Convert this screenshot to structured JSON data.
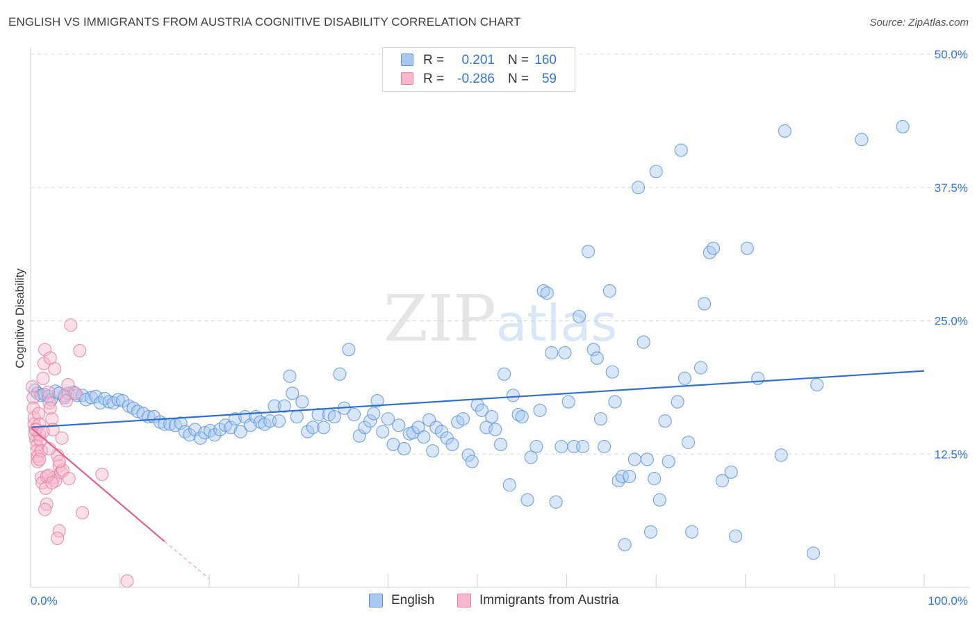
{
  "header": {
    "title": "ENGLISH VS IMMIGRANTS FROM AUSTRIA COGNITIVE DISABILITY CORRELATION CHART",
    "source": "Source: ZipAtlas.com"
  },
  "watermark": {
    "part1": "ZIP",
    "part2": "atlas"
  },
  "legend_top": {
    "rows": [
      {
        "r_label": "R =",
        "r_value": "0.201",
        "n_label": "N =",
        "n_value": "160"
      },
      {
        "r_label": "R =",
        "r_value": "-0.286",
        "n_label": "N =",
        "n_value": "59"
      }
    ]
  },
  "legend_bottom": [
    {
      "label": "English"
    },
    {
      "label": "Immigrants from Austria"
    }
  ],
  "colors": {
    "english_fill": "#a9c8f0",
    "english_stroke": "#5b93dc",
    "english_line": "#2e6fd0",
    "austria_fill": "#f6b9cc",
    "austria_stroke": "#e77fa3",
    "austria_line": "#e0608e",
    "grid": "#d9d9d9",
    "axis_text_blue": "#3575d0"
  },
  "chart_data": {
    "type": "scatter",
    "title": "ENGLISH VS IMMIGRANTS FROM AUSTRIA COGNITIVE DISABILITY CORRELATION CHART",
    "xlabel": "",
    "ylabel": "Cognitive Disability",
    "xlim": [
      0,
      100
    ],
    "ylim": [
      0,
      50
    ],
    "x_tick_labels": [
      "0.0%",
      "100.0%"
    ],
    "y_ticks": [
      12.5,
      25.0,
      37.5,
      50.0
    ],
    "y_tick_labels": [
      "12.5%",
      "25.0%",
      "37.5%",
      "50.0%"
    ],
    "series": [
      {
        "name": "English",
        "r": 0.201,
        "n": 160,
        "trend": {
          "x": [
            0,
            100
          ],
          "y": [
            15.0,
            20.3
          ]
        },
        "points": [
          [
            0.5,
            18.5
          ],
          [
            0.8,
            18.2
          ],
          [
            1.2,
            18.0
          ],
          [
            1.5,
            18.1
          ],
          [
            2.0,
            17.9
          ],
          [
            2.3,
            17.6
          ],
          [
            2.8,
            18.4
          ],
          [
            3.2,
            18.2
          ],
          [
            3.8,
            17.8
          ],
          [
            4.2,
            18.2
          ],
          [
            4.8,
            18.3
          ],
          [
            5.2,
            18.0
          ],
          [
            5.8,
            18.0
          ],
          [
            6.2,
            17.6
          ],
          [
            6.8,
            17.8
          ],
          [
            7.3,
            17.9
          ],
          [
            7.8,
            17.3
          ],
          [
            8.3,
            17.7
          ],
          [
            8.8,
            17.4
          ],
          [
            9.3,
            17.3
          ],
          [
            9.8,
            17.6
          ],
          [
            10.3,
            17.5
          ],
          [
            11.0,
            17.0
          ],
          [
            11.5,
            16.8
          ],
          [
            12.0,
            16.5
          ],
          [
            12.6,
            16.3
          ],
          [
            13.2,
            16.0
          ],
          [
            13.8,
            16.0
          ],
          [
            14.5,
            15.5
          ],
          [
            15.0,
            15.3
          ],
          [
            15.6,
            15.3
          ],
          [
            16.2,
            15.2
          ],
          [
            16.8,
            15.4
          ],
          [
            17.3,
            14.6
          ],
          [
            17.8,
            14.3
          ],
          [
            18.4,
            14.8
          ],
          [
            19.0,
            14.0
          ],
          [
            19.5,
            14.5
          ],
          [
            20.1,
            14.7
          ],
          [
            20.6,
            14.3
          ],
          [
            21.2,
            14.8
          ],
          [
            21.8,
            15.2
          ],
          [
            22.4,
            15.0
          ],
          [
            22.9,
            15.8
          ],
          [
            23.5,
            14.6
          ],
          [
            24.0,
            16.0
          ],
          [
            24.6,
            15.2
          ],
          [
            25.2,
            16.0
          ],
          [
            25.7,
            15.5
          ],
          [
            26.2,
            15.3
          ],
          [
            26.8,
            15.6
          ],
          [
            27.3,
            17.0
          ],
          [
            27.8,
            15.6
          ],
          [
            28.4,
            17.0
          ],
          [
            29.0,
            19.8
          ],
          [
            29.3,
            18.2
          ],
          [
            29.8,
            16.0
          ],
          [
            30.4,
            17.4
          ],
          [
            31.0,
            14.6
          ],
          [
            31.6,
            15.0
          ],
          [
            32.2,
            16.2
          ],
          [
            32.8,
            15.0
          ],
          [
            33.4,
            16.2
          ],
          [
            34.0,
            16.0
          ],
          [
            34.6,
            20.0
          ],
          [
            35.1,
            16.8
          ],
          [
            35.6,
            22.3
          ],
          [
            36.2,
            16.2
          ],
          [
            36.8,
            14.2
          ],
          [
            37.4,
            15.0
          ],
          [
            38.0,
            15.6
          ],
          [
            38.4,
            16.3
          ],
          [
            38.8,
            17.5
          ],
          [
            39.4,
            14.6
          ],
          [
            40.0,
            15.8
          ],
          [
            40.6,
            13.4
          ],
          [
            41.2,
            15.2
          ],
          [
            41.8,
            13.0
          ],
          [
            42.4,
            14.4
          ],
          [
            42.8,
            14.5
          ],
          [
            43.4,
            15.0
          ],
          [
            44.0,
            14.1
          ],
          [
            44.6,
            15.7
          ],
          [
            45.0,
            12.8
          ],
          [
            45.4,
            15.0
          ],
          [
            46.0,
            14.6
          ],
          [
            46.6,
            14.0
          ],
          [
            47.2,
            13.4
          ],
          [
            47.8,
            15.5
          ],
          [
            48.4,
            15.8
          ],
          [
            49.0,
            12.4
          ],
          [
            49.4,
            11.8
          ],
          [
            50.0,
            17.1
          ],
          [
            50.5,
            16.6
          ],
          [
            51.0,
            15.0
          ],
          [
            51.6,
            16.0
          ],
          [
            52.0,
            14.8
          ],
          [
            52.6,
            13.4
          ],
          [
            53.0,
            20.0
          ],
          [
            53.6,
            9.6
          ],
          [
            54.0,
            18.0
          ],
          [
            54.6,
            16.2
          ],
          [
            55.0,
            16.0
          ],
          [
            55.6,
            8.2
          ],
          [
            56.0,
            12.2
          ],
          [
            56.6,
            13.2
          ],
          [
            57.0,
            16.6
          ],
          [
            57.4,
            27.8
          ],
          [
            57.8,
            27.6
          ],
          [
            58.3,
            22.0
          ],
          [
            58.8,
            8.0
          ],
          [
            59.4,
            13.2
          ],
          [
            59.8,
            22.0
          ],
          [
            60.2,
            17.4
          ],
          [
            60.8,
            13.2
          ],
          [
            61.4,
            25.4
          ],
          [
            61.8,
            13.2
          ],
          [
            62.4,
            31.5
          ],
          [
            63.0,
            22.3
          ],
          [
            63.4,
            21.5
          ],
          [
            63.8,
            15.8
          ],
          [
            64.2,
            13.2
          ],
          [
            64.8,
            27.8
          ],
          [
            65.1,
            20.2
          ],
          [
            65.4,
            17.4
          ],
          [
            65.8,
            10.0
          ],
          [
            66.2,
            10.4
          ],
          [
            66.5,
            4.0
          ],
          [
            67.0,
            10.4
          ],
          [
            67.6,
            12.0
          ],
          [
            68.0,
            37.5
          ],
          [
            68.6,
            23.0
          ],
          [
            69.0,
            12.0
          ],
          [
            69.4,
            5.2
          ],
          [
            69.8,
            10.2
          ],
          [
            70.0,
            39.0
          ],
          [
            70.4,
            8.2
          ],
          [
            71.0,
            15.6
          ],
          [
            71.4,
            11.8
          ],
          [
            72.4,
            17.4
          ],
          [
            72.8,
            41.0
          ],
          [
            73.2,
            19.6
          ],
          [
            73.6,
            13.6
          ],
          [
            74.0,
            5.2
          ],
          [
            75.0,
            20.6
          ],
          [
            75.4,
            26.6
          ],
          [
            76.0,
            31.4
          ],
          [
            76.4,
            31.8
          ],
          [
            77.4,
            10.0
          ],
          [
            78.4,
            10.8
          ],
          [
            78.9,
            4.8
          ],
          [
            80.2,
            31.8
          ],
          [
            81.4,
            19.6
          ],
          [
            84.0,
            12.4
          ],
          [
            84.4,
            42.8
          ],
          [
            87.6,
            3.2
          ],
          [
            88.0,
            19.0
          ],
          [
            93.0,
            42.0
          ],
          [
            97.6,
            43.2
          ]
        ]
      },
      {
        "name": "Immigrants from Austria",
        "r": -0.286,
        "n": 59,
        "trend": {
          "x": [
            0,
            15
          ],
          "y": [
            15.0,
            4.3
          ],
          "dashed_to": {
            "x": 20,
            "y": 0.8
          }
        },
        "points": [
          [
            0.2,
            18.8
          ],
          [
            0.3,
            17.8
          ],
          [
            0.3,
            16.8
          ],
          [
            0.4,
            15.9
          ],
          [
            0.4,
            15.3
          ],
          [
            0.5,
            14.8
          ],
          [
            0.5,
            14.3
          ],
          [
            0.6,
            13.8
          ],
          [
            0.7,
            13.3
          ],
          [
            0.7,
            12.8
          ],
          [
            0.8,
            12.3
          ],
          [
            0.8,
            11.8
          ],
          [
            0.9,
            16.3
          ],
          [
            1.0,
            15.3
          ],
          [
            1.0,
            14.3
          ],
          [
            1.1,
            13.8
          ],
          [
            1.2,
            12.8
          ],
          [
            1.2,
            10.3
          ],
          [
            1.3,
            9.8
          ],
          [
            1.4,
            19.6
          ],
          [
            1.5,
            21.0
          ],
          [
            1.6,
            22.3
          ],
          [
            1.7,
            9.3
          ],
          [
            1.8,
            7.8
          ],
          [
            2.0,
            18.3
          ],
          [
            2.1,
            17.3
          ],
          [
            2.2,
            16.8
          ],
          [
            2.4,
            15.8
          ],
          [
            2.5,
            14.8
          ],
          [
            2.6,
            10.3
          ],
          [
            2.7,
            20.5
          ],
          [
            2.8,
            10.0
          ],
          [
            3.0,
            12.4
          ],
          [
            3.2,
            11.4
          ],
          [
            3.4,
            10.8
          ],
          [
            3.5,
            14.0
          ],
          [
            3.6,
            11.0
          ],
          [
            3.8,
            18.0
          ],
          [
            4.0,
            17.5
          ],
          [
            4.2,
            19.0
          ],
          [
            4.3,
            10.2
          ],
          [
            4.5,
            24.6
          ],
          [
            5.0,
            18.2
          ],
          [
            5.5,
            22.2
          ],
          [
            3.2,
            5.3
          ],
          [
            3.0,
            4.6
          ],
          [
            1.6,
            7.3
          ],
          [
            1.8,
            10.4
          ],
          [
            2.0,
            10.5
          ],
          [
            2.1,
            13.0
          ],
          [
            0.6,
            14.8
          ],
          [
            2.2,
            21.5
          ],
          [
            2.4,
            9.8
          ],
          [
            1.4,
            14.6
          ],
          [
            3.2,
            11.8
          ],
          [
            5.8,
            7.0
          ],
          [
            8.0,
            10.6
          ],
          [
            10.8,
            0.6
          ],
          [
            1.0,
            12.0
          ]
        ]
      }
    ]
  }
}
